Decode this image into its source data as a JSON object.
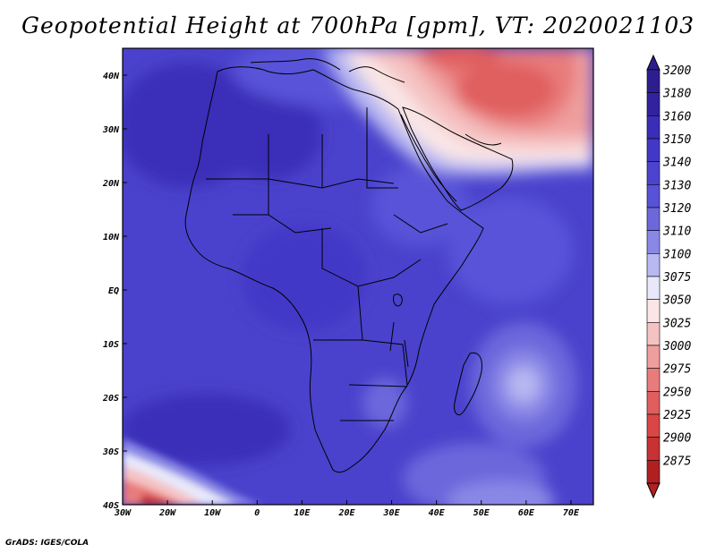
{
  "title": "Geopotential Height at 700hPa [gpm], VT: 2020021103",
  "credit": "GrADS: IGES/COLA",
  "map": {
    "lon_range": [
      -30,
      75
    ],
    "lat_range": [
      -40,
      45
    ],
    "x_ticks": [
      {
        "lon": -30,
        "label": "30W"
      },
      {
        "lon": -20,
        "label": "20W"
      },
      {
        "lon": -10,
        "label": "10W"
      },
      {
        "lon": 0,
        "label": "0"
      },
      {
        "lon": 10,
        "label": "10E"
      },
      {
        "lon": 20,
        "label": "20E"
      },
      {
        "lon": 30,
        "label": "30E"
      },
      {
        "lon": 40,
        "label": "40E"
      },
      {
        "lon": 50,
        "label": "50E"
      },
      {
        "lon": 60,
        "label": "60E"
      },
      {
        "lon": 70,
        "label": "70E"
      }
    ],
    "y_ticks": [
      {
        "lat": 40,
        "label": "40N"
      },
      {
        "lat": 30,
        "label": "30N"
      },
      {
        "lat": 20,
        "label": "20N"
      },
      {
        "lat": 10,
        "label": "10N"
      },
      {
        "lat": 0,
        "label": "EQ"
      },
      {
        "lat": -10,
        "label": "10S"
      },
      {
        "lat": -20,
        "label": "20S"
      },
      {
        "lat": -30,
        "label": "30S"
      },
      {
        "lat": -40,
        "label": "40S"
      }
    ]
  },
  "colorbar": {
    "levels": [
      {
        "label": "3200",
        "color": "#2d1e8f"
      },
      {
        "label": "3180",
        "color": "#3222a0"
      },
      {
        "label": "3160",
        "color": "#3a2eb8"
      },
      {
        "label": "3150",
        "color": "#4238c8"
      },
      {
        "label": "3140",
        "color": "#4c44d0"
      },
      {
        "label": "3130",
        "color": "#5852d8"
      },
      {
        "label": "3120",
        "color": "#6c68dc"
      },
      {
        "label": "3110",
        "color": "#8a88e6"
      },
      {
        "label": "3100",
        "color": "#b8b8f2"
      },
      {
        "label": "3075",
        "color": "#e8e8fa"
      },
      {
        "label": "3050",
        "color": "#fae6e6"
      },
      {
        "label": "3025",
        "color": "#f5c2c2"
      },
      {
        "label": "3000",
        "color": "#ef9e9e"
      },
      {
        "label": "2975",
        "color": "#e87c7c"
      },
      {
        "label": "2950",
        "color": "#e05e5e"
      },
      {
        "label": "2925",
        "color": "#d84646"
      },
      {
        "label": "2900",
        "color": "#c83232"
      },
      {
        "label": "2875",
        "color": "#b02020"
      }
    ]
  }
}
